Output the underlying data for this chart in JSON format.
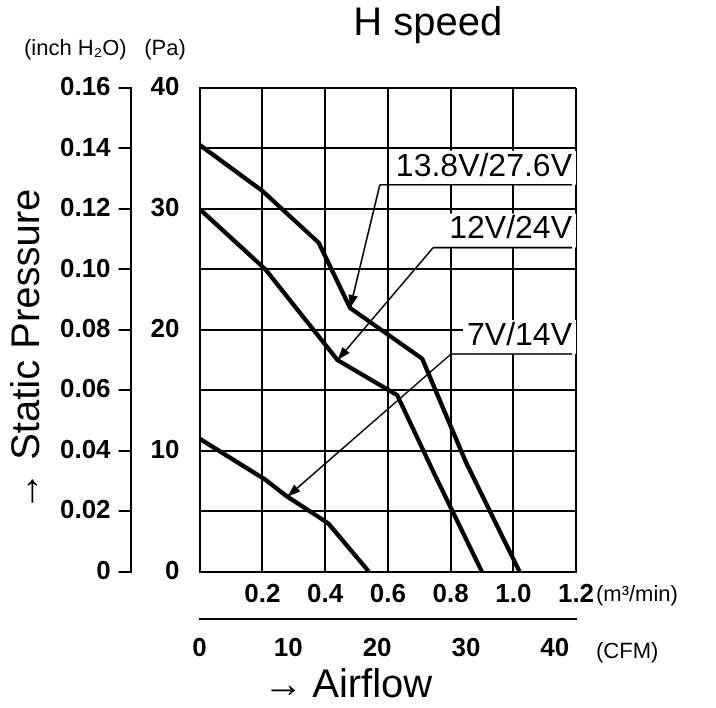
{
  "chart_data": {
    "type": "line",
    "title": "H speed",
    "xlabel": "(m³/min)",
    "ylabel": "(Pa)",
    "y2label": "(inch H₂O)",
    "x2label": "(CFM)",
    "annotations": [
      "→ Static Pressure",
      "→ Airflow"
    ],
    "series": [
      {
        "name": "13.8V/27.6V",
        "color": "#000000",
        "x": [
          0,
          0.2,
          0.38,
          0.48,
          0.71,
          0.85,
          1.02
        ],
        "values": [
          35.3,
          31.5,
          27.2,
          21.8,
          17.6,
          9,
          0
        ]
      },
      {
        "name": "12V/24V",
        "color": "#000000",
        "x": [
          0,
          0.21,
          0.44,
          0.63,
          0.75,
          0.9
        ],
        "values": [
          30,
          25,
          17.5,
          14.6,
          8,
          0
        ]
      },
      {
        "name": "7V/14V",
        "color": "#000000",
        "x": [
          0,
          0.21,
          0.28,
          0.41,
          0.54
        ],
        "values": [
          11,
          7.6,
          6.2,
          4,
          0
        ]
      }
    ],
    "xlim": [
      0,
      1.2
    ],
    "xticks": [
      {
        "value": 0,
        "label": null
      },
      0.2,
      0.4,
      0.6,
      0.8,
      {
        "value": 1,
        "label": "1.0"
      },
      1.2
    ],
    "ylim": [
      0,
      40
    ],
    "yticks": [
      0,
      {
        "value": 5,
        "label": null
      },
      10,
      {
        "value": 15,
        "label": null
      },
      20,
      {
        "value": 25,
        "label": null
      },
      30,
      {
        "value": 35,
        "label": null
      },
      40
    ],
    "y2lim": [
      0,
      0.16
    ],
    "y2ticks": [
      0,
      0.02,
      0.04,
      0.06,
      0.08,
      {
        "value": 0.1,
        "label": "0.10"
      },
      0.12,
      0.14,
      0.16
    ],
    "x2lim": [
      0,
      42.4
    ],
    "x2ticks": [
      0,
      10,
      20,
      30,
      40
    ],
    "grid": true,
    "legend": false,
    "marker": "none",
    "line_style": "solid"
  }
}
